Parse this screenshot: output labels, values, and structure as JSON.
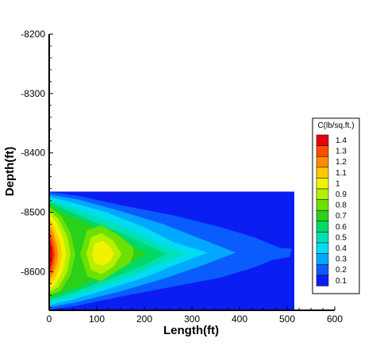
{
  "chart_data": {
    "type": "heatmap",
    "xlabel": "Length(ft)",
    "ylabel": "Depth(ft)",
    "xlim": [
      0,
      600
    ],
    "ylim": [
      -8665,
      -8200
    ],
    "x_ticks": [
      "0",
      "100",
      "200",
      "300",
      "400",
      "500",
      "600"
    ],
    "y_ticks": [
      "-8200",
      "-8300",
      "-8400",
      "-8500",
      "-8600"
    ],
    "grid": false,
    "domain": {
      "x": [
        0,
        515
      ],
      "y": [
        -8665,
        -8465
      ]
    },
    "legend": {
      "title": "C(lb/sq.ft.)",
      "placement": "right",
      "levels": [
        {
          "label": "1.4",
          "value": 1.4,
          "color": "#e8000b"
        },
        {
          "label": "1.3",
          "value": 1.3,
          "color": "#ff4d00"
        },
        {
          "label": "1.2",
          "value": 1.2,
          "color": "#ff8c00"
        },
        {
          "label": "1.1",
          "value": 1.1,
          "color": "#ffc800"
        },
        {
          "label": "1",
          "value": 1.0,
          "color": "#f2f200"
        },
        {
          "label": "0.9",
          "value": 0.9,
          "color": "#b4f000"
        },
        {
          "label": "0.8",
          "value": 0.8,
          "color": "#6ce000"
        },
        {
          "label": "0.7",
          "value": 0.7,
          "color": "#2ad01a"
        },
        {
          "label": "0.6",
          "value": 0.6,
          "color": "#00d966"
        },
        {
          "label": "0.5",
          "value": 0.5,
          "color": "#00e0b2"
        },
        {
          "label": "0.4",
          "value": 0.4,
          "color": "#00dcf0"
        },
        {
          "label": "0.3",
          "value": 0.3,
          "color": "#00a8ff"
        },
        {
          "label": "0.2",
          "value": 0.2,
          "color": "#0a5cff"
        },
        {
          "label": "0.1",
          "value": 0.1,
          "color": "#0a1ef2"
        }
      ]
    },
    "contours": [
      {
        "level": 0.2,
        "points": [
          [
            0,
            -8466
          ],
          [
            60,
            -8472
          ],
          [
            150,
            -8488
          ],
          [
            260,
            -8505
          ],
          [
            360,
            -8525
          ],
          [
            430,
            -8542
          ],
          [
            470,
            -8555
          ],
          [
            485,
            -8560
          ],
          [
            505,
            -8561
          ],
          [
            510,
            -8562
          ],
          [
            505,
            -8575
          ],
          [
            485,
            -8578
          ],
          [
            470,
            -8580
          ],
          [
            430,
            -8593
          ],
          [
            360,
            -8610
          ],
          [
            260,
            -8625
          ],
          [
            150,
            -8642
          ],
          [
            60,
            -8657
          ],
          [
            0,
            -8664
          ]
        ]
      },
      {
        "level": 0.3,
        "points": [
          [
            0,
            -8470
          ],
          [
            60,
            -8478
          ],
          [
            150,
            -8498
          ],
          [
            240,
            -8520
          ],
          [
            320,
            -8545
          ],
          [
            392,
            -8568
          ],
          [
            320,
            -8590
          ],
          [
            240,
            -8612
          ],
          [
            150,
            -8633
          ],
          [
            60,
            -8651
          ],
          [
            0,
            -8660
          ]
        ]
      },
      {
        "level": 0.4,
        "points": [
          [
            0,
            -8474
          ],
          [
            50,
            -8484
          ],
          [
            120,
            -8500
          ],
          [
            200,
            -8525
          ],
          [
            260,
            -8550
          ],
          [
            333,
            -8568
          ],
          [
            260,
            -8590
          ],
          [
            200,
            -8610
          ],
          [
            120,
            -8630
          ],
          [
            50,
            -8647
          ],
          [
            0,
            -8656
          ]
        ]
      },
      {
        "level": 0.5,
        "points": [
          [
            0,
            -8478
          ],
          [
            40,
            -8490
          ],
          [
            110,
            -8510
          ],
          [
            180,
            -8533
          ],
          [
            230,
            -8553
          ],
          [
            285,
            -8570
          ],
          [
            230,
            -8588
          ],
          [
            180,
            -8605
          ],
          [
            110,
            -8625
          ],
          [
            40,
            -8643
          ],
          [
            0,
            -8652
          ]
        ]
      },
      {
        "level": 0.6,
        "points": [
          [
            0,
            -8482
          ],
          [
            35,
            -8496
          ],
          [
            100,
            -8518
          ],
          [
            160,
            -8538
          ],
          [
            205,
            -8555
          ],
          [
            245,
            -8570
          ],
          [
            205,
            -8587
          ],
          [
            160,
            -8602
          ],
          [
            100,
            -8620
          ],
          [
            35,
            -8639
          ],
          [
            0,
            -8648
          ]
        ]
      },
      {
        "level": 0.7,
        "points": [
          [
            0,
            -8486
          ],
          [
            30,
            -8502
          ],
          [
            65,
            -8513
          ],
          [
            95,
            -8525
          ],
          [
            140,
            -8545
          ],
          [
            175,
            -8558
          ],
          [
            205,
            -8570
          ],
          [
            175,
            -8583
          ],
          [
            140,
            -8598
          ],
          [
            95,
            -8614
          ],
          [
            65,
            -8626
          ],
          [
            30,
            -8634
          ],
          [
            0,
            -8644
          ]
        ]
      },
      {
        "level": 0.8,
        "points": [
          [
            0,
            -8490
          ],
          [
            25,
            -8506
          ],
          [
            45,
            -8535
          ],
          [
            55,
            -8570
          ],
          [
            45,
            -8605
          ],
          [
            25,
            -8632
          ],
          [
            0,
            -8640
          ]
        ]
      },
      {
        "level": 0.8,
        "points": [
          [
            80,
            -8530
          ],
          [
            110,
            -8522
          ],
          [
            145,
            -8538
          ],
          [
            175,
            -8558
          ],
          [
            178,
            -8570
          ],
          [
            170,
            -8585
          ],
          [
            140,
            -8600
          ],
          [
            110,
            -8616
          ],
          [
            80,
            -8608
          ],
          [
            65,
            -8570
          ]
        ]
      },
      {
        "level": 0.9,
        "points": [
          [
            0,
            -8496
          ],
          [
            20,
            -8512
          ],
          [
            38,
            -8540
          ],
          [
            45,
            -8570
          ],
          [
            38,
            -8600
          ],
          [
            20,
            -8626
          ],
          [
            0,
            -8635
          ]
        ]
      },
      {
        "level": 0.9,
        "points": [
          [
            88,
            -8542
          ],
          [
            110,
            -8535
          ],
          [
            135,
            -8548
          ],
          [
            152,
            -8570
          ],
          [
            135,
            -8592
          ],
          [
            110,
            -8604
          ],
          [
            88,
            -8597
          ],
          [
            78,
            -8570
          ]
        ]
      },
      {
        "level": 1.0,
        "points": [
          [
            0,
            -8502
          ],
          [
            16,
            -8518
          ],
          [
            30,
            -8545
          ],
          [
            36,
            -8570
          ],
          [
            30,
            -8596
          ],
          [
            16,
            -8620
          ],
          [
            0,
            -8630
          ]
        ]
      },
      {
        "level": 1.0,
        "points": [
          [
            95,
            -8553
          ],
          [
            112,
            -8548
          ],
          [
            128,
            -8558
          ],
          [
            136,
            -8570
          ],
          [
            128,
            -8583
          ],
          [
            112,
            -8590
          ],
          [
            95,
            -8585
          ],
          [
            90,
            -8570
          ]
        ]
      },
      {
        "level": 1.1,
        "points": [
          [
            0,
            -8510
          ],
          [
            12,
            -8526
          ],
          [
            22,
            -8550
          ],
          [
            27,
            -8570
          ],
          [
            22,
            -8592
          ],
          [
            12,
            -8612
          ],
          [
            0,
            -8624
          ]
        ]
      },
      {
        "level": 1.2,
        "points": [
          [
            0,
            -8520
          ],
          [
            9,
            -8535
          ],
          [
            16,
            -8555
          ],
          [
            19,
            -8570
          ],
          [
            16,
            -8586
          ],
          [
            9,
            -8604
          ],
          [
            0,
            -8615
          ]
        ]
      },
      {
        "level": 1.3,
        "points": [
          [
            0,
            -8530
          ],
          [
            7,
            -8545
          ],
          [
            11,
            -8558
          ],
          [
            13,
            -8570
          ],
          [
            11,
            -8583
          ],
          [
            7,
            -8596
          ],
          [
            0,
            -8608
          ]
        ]
      },
      {
        "level": 1.4,
        "points": [
          [
            0,
            -8540
          ],
          [
            4,
            -8552
          ],
          [
            7,
            -8562
          ],
          [
            8,
            -8570
          ],
          [
            7,
            -8580
          ],
          [
            4,
            -8590
          ],
          [
            0,
            -8600
          ]
        ]
      }
    ]
  }
}
